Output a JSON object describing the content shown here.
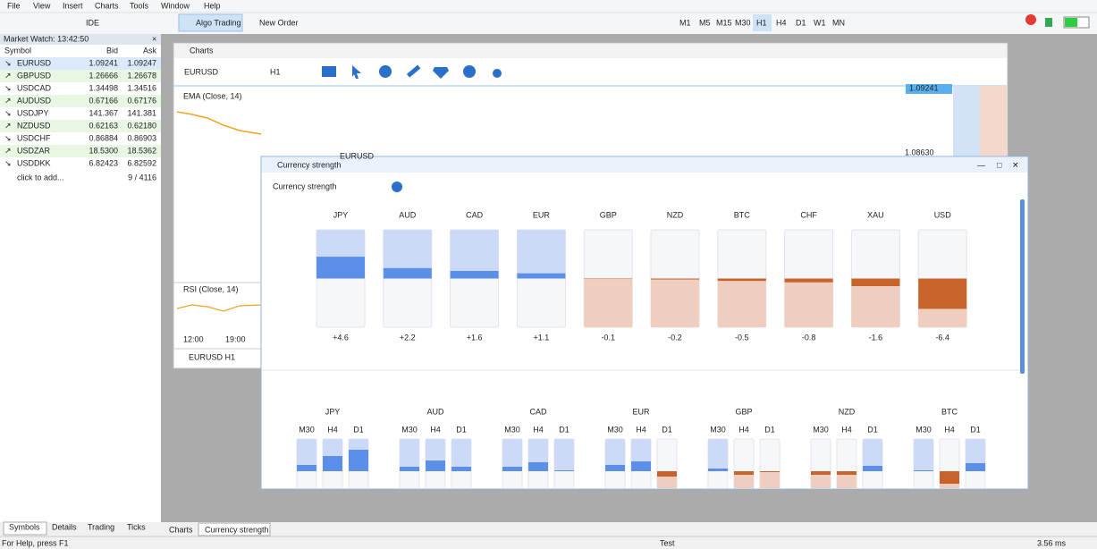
{
  "menu": [
    "File",
    "View",
    "Insert",
    "Charts",
    "Tools",
    "Window",
    "Help"
  ],
  "toolbar": {
    "ide": "IDE",
    "algo_trading": "Algo Trading",
    "new_order": "New Order",
    "timeframes": [
      "M1",
      "M5",
      "M15",
      "M30",
      "H1",
      "H4",
      "D1",
      "W1",
      "MN"
    ],
    "active_timeframe": "H1"
  },
  "market_watch": {
    "title": "Market Watch: 13:42:50",
    "columns": [
      "Symbol",
      "Bid",
      "Ask"
    ],
    "rows": [
      {
        "symbol": "EURUSD",
        "bid": "1.09241",
        "ask": "1.09247",
        "direction": "down"
      },
      {
        "symbol": "GBPUSD",
        "bid": "1.26666",
        "ask": "1.26678",
        "direction": "up"
      },
      {
        "symbol": "USDCAD",
        "bid": "1.34498",
        "ask": "1.34516",
        "direction": "down"
      },
      {
        "symbol": "AUDUSD",
        "bid": "0.67166",
        "ask": "0.67176",
        "direction": "up"
      },
      {
        "symbol": "USDJPY",
        "bid": "141.367",
        "ask": "141.381",
        "direction": "down"
      },
      {
        "symbol": "NZDUSD",
        "bid": "0.62163",
        "ask": "0.62180",
        "direction": "up"
      },
      {
        "symbol": "USDCHF",
        "bid": "0.86884",
        "ask": "0.86903",
        "direction": "down"
      },
      {
        "symbol": "USDZAR",
        "bid": "18.5300",
        "ask": "18.5362",
        "direction": "up"
      },
      {
        "symbol": "USDDKK",
        "bid": "6.82423",
        "ask": "6.82592",
        "direction": "down"
      }
    ],
    "add": "click to add...",
    "count": "9 / 4116",
    "tabs": [
      "Symbols",
      "Details",
      "Trading",
      "Ticks"
    ]
  },
  "charts_window": {
    "title": "Charts",
    "symbol": "EURUSD",
    "timeframe": "H1",
    "watermark": "EURUSD",
    "ema_label": "EMA (Close, 14)",
    "rsi_label": "RSI (Close, 14)",
    "price_labels": [
      "1.09241",
      "1.08630"
    ],
    "time_labels": [
      "12:00",
      "19:00"
    ],
    "tab": "EURUSD H1"
  },
  "strength_window": {
    "title": "Currency strength",
    "heading": "Currency strength",
    "currencies": [
      {
        "name": "JPY",
        "value": 4.6,
        "label": "+4.6"
      },
      {
        "name": "AUD",
        "value": 2.2,
        "label": "+2.2"
      },
      {
        "name": "CAD",
        "value": 1.6,
        "label": "+1.6"
      },
      {
        "name": "EUR",
        "value": 1.1,
        "label": "+1.1"
      },
      {
        "name": "GBP",
        "value": -0.1,
        "label": "-0.1"
      },
      {
        "name": "NZD",
        "value": -0.2,
        "label": "-0.2"
      },
      {
        "name": "BTC",
        "value": -0.5,
        "label": "-0.5"
      },
      {
        "name": "CHF",
        "value": -0.8,
        "label": "-0.8"
      },
      {
        "name": "XAU",
        "value": -1.6,
        "label": "-1.6"
      },
      {
        "name": "USD",
        "value": -6.4,
        "label": "-6.4"
      }
    ],
    "timeframes": [
      "M30",
      "H4",
      "D1"
    ],
    "matrix": [
      {
        "name": "JPY",
        "values": [
          1.4,
          3.4,
          4.8
        ]
      },
      {
        "name": "AUD",
        "values": [
          1.0,
          2.4,
          1.0
        ]
      },
      {
        "name": "CAD",
        "values": [
          1.0,
          2.0,
          0.2
        ]
      },
      {
        "name": "EUR",
        "values": [
          1.4,
          2.2,
          -1.2
        ]
      },
      {
        "name": "GBP",
        "values": [
          0.6,
          -0.8,
          -0.2
        ]
      },
      {
        "name": "NZD",
        "values": [
          -0.8,
          -0.8,
          1.2
        ]
      },
      {
        "name": "BTC",
        "values": [
          0.2,
          -2.8,
          1.8
        ]
      }
    ]
  },
  "bottom_tabs": [
    "Charts",
    "Currency strength"
  ],
  "status": {
    "help": "For Help, press F1",
    "profile": "Test",
    "ping": "3.56 ms"
  }
}
